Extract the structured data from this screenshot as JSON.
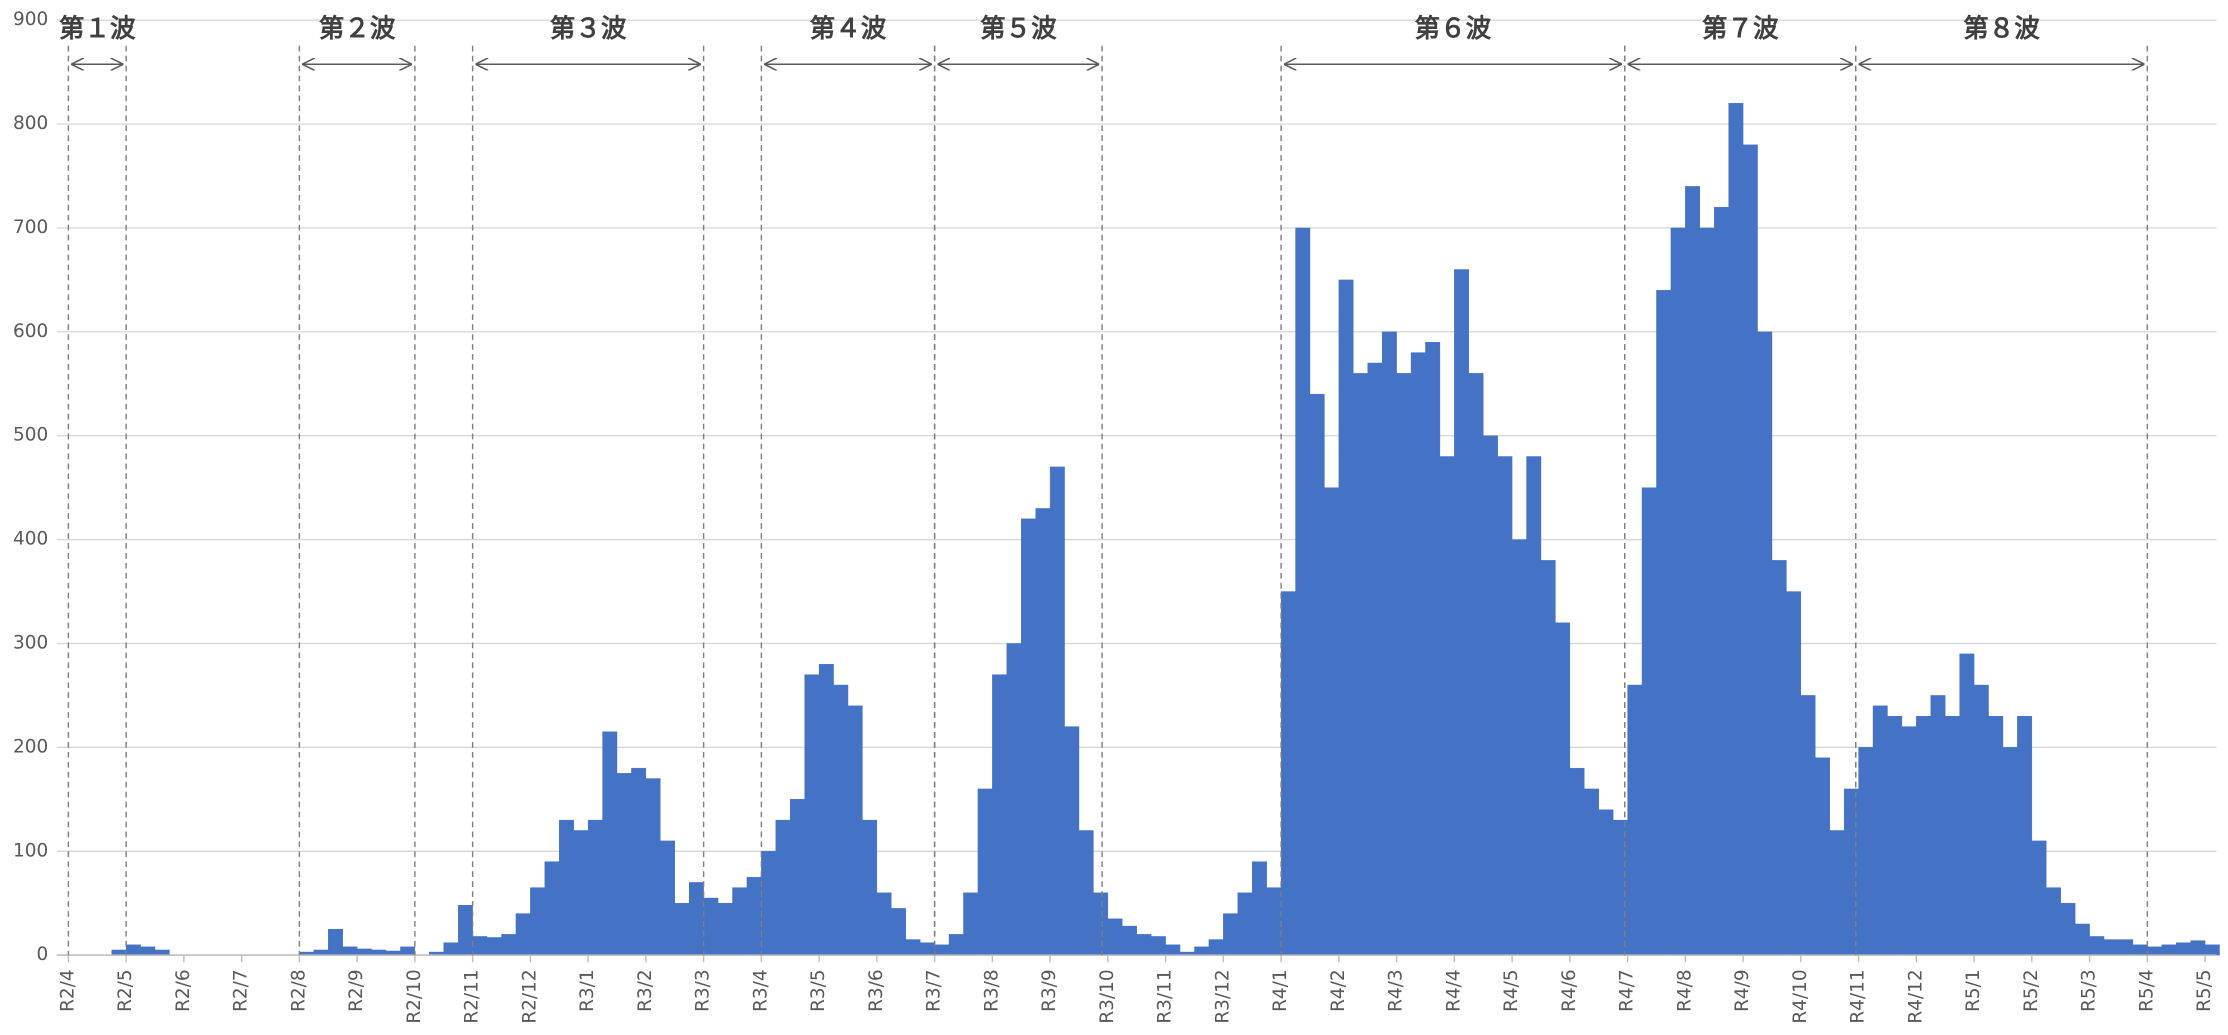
{
  "chart_data": {
    "type": "bar",
    "color": "#4472c4",
    "grid": true,
    "ylim": [
      0,
      900
    ],
    "yticks": [
      0,
      100,
      200,
      300,
      400,
      500,
      600,
      700,
      800,
      900
    ],
    "xlim": [
      -0.2,
      37.2
    ],
    "xticks": [
      {
        "value": 0,
        "label": "R2/4"
      },
      {
        "value": 1,
        "label": "R2/5"
      },
      {
        "value": 2,
        "label": "R2/6"
      },
      {
        "value": 3,
        "label": "R2/7"
      },
      {
        "value": 4,
        "label": "R2/8"
      },
      {
        "value": 5,
        "label": "R2/9"
      },
      {
        "value": 6,
        "label": "R2/10"
      },
      {
        "value": 7,
        "label": "R2/11"
      },
      {
        "value": 8,
        "label": "R2/12"
      },
      {
        "value": 9,
        "label": "R3/1"
      },
      {
        "value": 10,
        "label": "R3/2"
      },
      {
        "value": 11,
        "label": "R3/3"
      },
      {
        "value": 12,
        "label": "R3/4"
      },
      {
        "value": 13,
        "label": "R3/5"
      },
      {
        "value": 14,
        "label": "R3/6"
      },
      {
        "value": 15,
        "label": "R3/7"
      },
      {
        "value": 16,
        "label": "R3/8"
      },
      {
        "value": 17,
        "label": "R3/9"
      },
      {
        "value": 18,
        "label": "R3/10"
      },
      {
        "value": 19,
        "label": "R3/11"
      },
      {
        "value": 20,
        "label": "R3/12"
      },
      {
        "value": 21,
        "label": "R4/1"
      },
      {
        "value": 22,
        "label": "R4/2"
      },
      {
        "value": 23,
        "label": "R4/3"
      },
      {
        "value": 24,
        "label": "R4/4"
      },
      {
        "value": 25,
        "label": "R4/5"
      },
      {
        "value": 26,
        "label": "R4/6"
      },
      {
        "value": 27,
        "label": "R4/7"
      },
      {
        "value": 28,
        "label": "R4/8"
      },
      {
        "value": 29,
        "label": "R4/9"
      },
      {
        "value": 30,
        "label": "R4/10"
      },
      {
        "value": 31,
        "label": "R4/11"
      },
      {
        "value": 32,
        "label": "R4/12"
      },
      {
        "value": 33,
        "label": "R5/1"
      },
      {
        "value": 34,
        "label": "R5/2"
      },
      {
        "value": 35,
        "label": "R5/3"
      },
      {
        "value": 36,
        "label": "R5/4"
      },
      {
        "value": 37,
        "label": "R5/5"
      }
    ],
    "x": [
      0,
      0.25,
      0.5,
      0.75,
      1,
      1.25,
      1.5,
      1.75,
      2,
      2.25,
      2.5,
      2.75,
      3,
      3.25,
      3.5,
      3.75,
      4,
      4.25,
      4.5,
      4.75,
      5,
      5.25,
      5.5,
      5.75,
      6,
      6.25,
      6.5,
      6.75,
      7,
      7.25,
      7.5,
      7.75,
      8,
      8.25,
      8.5,
      8.75,
      9,
      9.25,
      9.5,
      9.75,
      10,
      10.25,
      10.5,
      10.75,
      11,
      11.25,
      11.5,
      11.75,
      12,
      12.25,
      12.5,
      12.75,
      13,
      13.25,
      13.5,
      13.75,
      14,
      14.25,
      14.5,
      14.75,
      15,
      15.25,
      15.5,
      15.75,
      16,
      16.25,
      16.5,
      16.75,
      17,
      17.25,
      17.5,
      17.75,
      18,
      18.25,
      18.5,
      18.75,
      19,
      19.25,
      19.5,
      19.75,
      20,
      20.25,
      20.5,
      20.75,
      21,
      21.25,
      21.5,
      21.75,
      22,
      22.25,
      22.5,
      22.75,
      23,
      23.25,
      23.5,
      23.75,
      24,
      24.25,
      24.5,
      24.75,
      25,
      25.25,
      25.5,
      25.75,
      26,
      26.25,
      26.5,
      26.75,
      27,
      27.25,
      27.5,
      27.75,
      28,
      28.25,
      28.5,
      28.75,
      29,
      29.25,
      29.5,
      29.75,
      30,
      30.25,
      30.5,
      30.75,
      31,
      31.25,
      31.5,
      31.75,
      32,
      32.25,
      32.5,
      32.75,
      33,
      33.25,
      33.5,
      33.75,
      34,
      34.25,
      34.5,
      34.75,
      35,
      35.25,
      35.5,
      35.75,
      36,
      36.25,
      36.5,
      36.75,
      37
    ],
    "values": [
      0,
      0,
      0,
      5,
      10,
      8,
      5,
      0,
      0,
      0,
      0,
      0,
      0,
      0,
      0,
      0,
      3,
      5,
      25,
      8,
      6,
      5,
      4,
      8,
      0,
      3,
      12,
      48,
      18,
      17,
      20,
      40,
      65,
      90,
      130,
      120,
      130,
      215,
      175,
      180,
      170,
      110,
      50,
      70,
      55,
      50,
      65,
      75,
      100,
      130,
      150,
      270,
      280,
      260,
      240,
      130,
      60,
      45,
      15,
      12,
      10,
      20,
      60,
      160,
      270,
      300,
      420,
      430,
      470,
      220,
      120,
      60,
      35,
      28,
      20,
      18,
      10,
      3,
      8,
      15,
      40,
      60,
      90,
      65,
      350,
      700,
      540,
      450,
      650,
      560,
      570,
      600,
      560,
      580,
      590,
      480,
      660,
      560,
      500,
      480,
      400,
      480,
      380,
      320,
      180,
      160,
      140,
      130,
      260,
      450,
      640,
      700,
      740,
      700,
      720,
      820,
      780,
      600,
      380,
      350,
      250,
      190,
      120,
      160,
      200,
      240,
      230,
      220,
      230,
      250,
      230,
      290,
      260,
      230,
      200,
      230,
      110,
      65,
      50,
      30,
      18,
      15,
      15,
      10,
      8,
      10,
      12,
      14,
      10
    ],
    "waves": [
      {
        "label": "第１波",
        "start": 0,
        "end": 1
      },
      {
        "label": "第２波",
        "start": 4,
        "end": 6
      },
      {
        "label": "第３波",
        "start": 7,
        "end": 11
      },
      {
        "label": "第４波",
        "start": 12,
        "end": 15
      },
      {
        "label": "第５波",
        "start": 15,
        "end": 17.9
      },
      {
        "label": "第６波",
        "start": 21,
        "end": 26.95
      },
      {
        "label": "第７波",
        "start": 26.95,
        "end": 30.95
      },
      {
        "label": "第８波",
        "start": 30.95,
        "end": 36
      }
    ]
  }
}
